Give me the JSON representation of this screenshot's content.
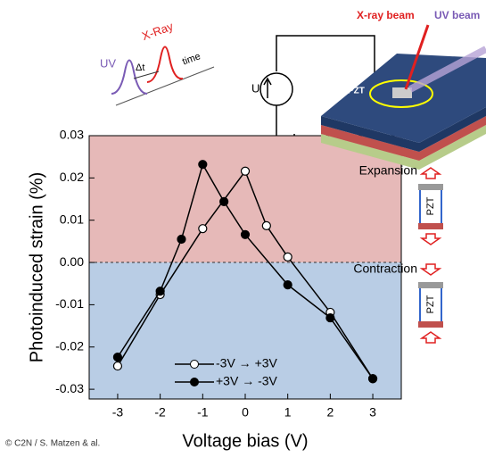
{
  "chart_data": {
    "type": "line",
    "y_label": "Photoinduced strain (%)",
    "x_label": "Voltage bias (V)",
    "xlim": [
      -3.67,
      3.67
    ],
    "xticks": [
      -3,
      -2,
      -1,
      0,
      1,
      2,
      3
    ],
    "ylim": [
      -0.0323,
      0.03
    ],
    "yticks": [
      0.03,
      0.02,
      0.01,
      {
        "value": 0,
        "label": "0.00"
      },
      -0.01,
      -0.02,
      -0.03
    ],
    "series": [
      {
        "name": "-3V → +3V",
        "color": "#000000",
        "marker": "open",
        "x": [
          -3,
          -2,
          -1,
          0,
          0.5,
          1,
          2,
          3
        ],
        "values": [
          -0.0245,
          -0.0076,
          0.008,
          0.0216,
          0.0087,
          0.0013,
          -0.0118,
          -0.0275
        ]
      },
      {
        "name": "+3V → -3V",
        "color": "#000000",
        "marker": "filled",
        "x": [
          -3,
          -2,
          -1.5,
          -1,
          -0.5,
          0,
          1,
          2,
          3
        ],
        "values": [
          -0.0224,
          -0.0068,
          0.0055,
          0.0232,
          0.0144,
          0.0066,
          -0.0053,
          -0.0131,
          -0.0275
        ]
      }
    ],
    "annotations": {
      "expansion": "Expansion",
      "contraction": "Contraction",
      "pzt_top": "PZT",
      "pzt_bottom": "PZT",
      "device": "PZT",
      "xray_beam": "X-ray beam",
      "uv_beam": "UV beam",
      "uv": "UV",
      "xray": "X-Ray",
      "delta_t": "Δt",
      "time": "time",
      "voltage": "U"
    },
    "credit": "© C2N / S. Matzen & al."
  }
}
